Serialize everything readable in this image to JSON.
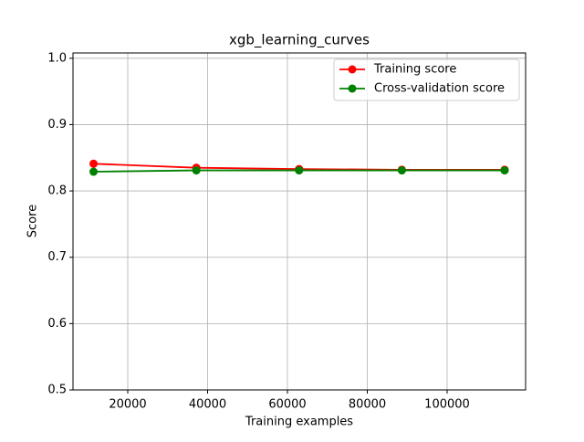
{
  "chart_data": {
    "type": "line",
    "title": "xgb_learning_curves",
    "xlabel": "Training examples",
    "ylabel": "Score",
    "x": [
      11440,
      37180,
      62920,
      88660,
      114400
    ],
    "series": [
      {
        "name": "Training score",
        "color": "#ff0000",
        "values": [
          0.841,
          0.835,
          0.833,
          0.832,
          0.832
        ]
      },
      {
        "name": "Cross-validation score",
        "color": "#008000",
        "values": [
          0.829,
          0.831,
          0.831,
          0.831,
          0.831
        ]
      }
    ],
    "xlim": [
      6286,
      119657
    ],
    "ylim": [
      0.5,
      1.008
    ],
    "xticks": [
      20000,
      40000,
      60000,
      80000,
      100000
    ],
    "yticks": [
      0.5,
      0.6,
      0.7,
      0.8,
      0.9,
      {
        "value": 1,
        "label": "1.0"
      }
    ],
    "grid": true,
    "legend": "upper right"
  }
}
